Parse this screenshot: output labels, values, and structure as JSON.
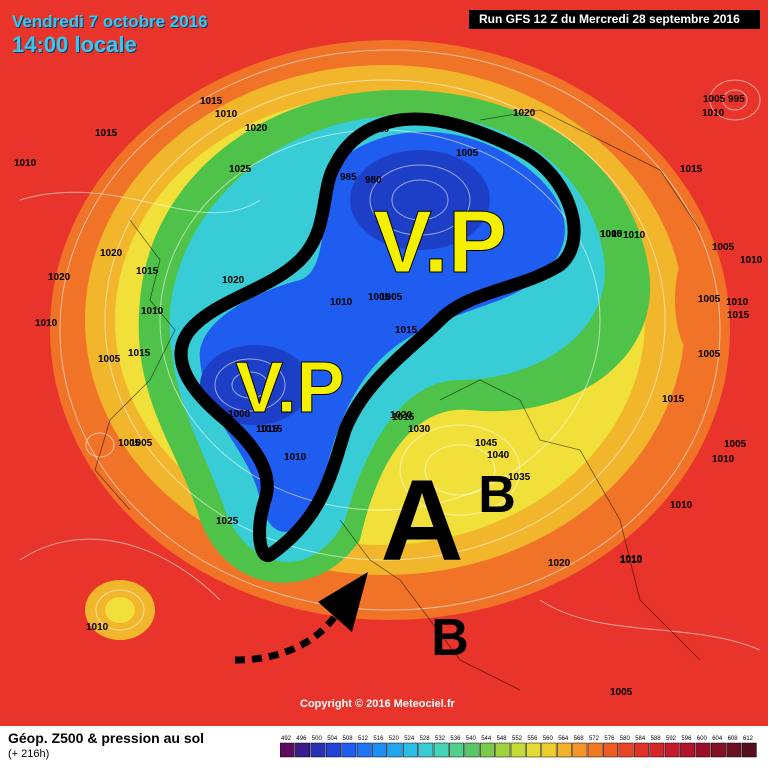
{
  "header": {
    "date": "Vendredi 7 octobre 2016",
    "time": "14:00 locale",
    "run": "Run GFS 12 Z du Mercredi 28 septembre 2016"
  },
  "footer": {
    "copyright": "Copyright © 2016 Meteociel.fr",
    "legend_title": "Géop. Z500 & pression au sol",
    "legend_subtitle": "(+ 216h)"
  },
  "annotations": {
    "vp_large": "V.P",
    "vp_small": "V.P",
    "high": "A",
    "low_east": "B",
    "low_south": "B"
  },
  "isobar_labels": [
    "1015",
    "1010",
    "1015",
    "1020",
    "1025",
    "1010",
    "1020",
    "1015",
    "1010",
    "1020",
    "1005",
    "1010",
    "1020",
    "1015",
    "1005",
    "1015",
    "1010",
    "1000",
    "985",
    "980",
    "1005",
    "1010",
    "1005",
    "1015",
    "1010",
    "1015",
    "1020",
    "1030",
    "1045",
    "1040",
    "1035",
    "1020",
    "1015",
    "1010",
    "1005",
    "1005",
    "1010",
    "1010",
    "1005",
    "1005",
    "1010",
    "1015",
    "1005",
    "1010",
    "1010",
    "1025",
    "1005",
    "995",
    "1010",
    "1005",
    "1015",
    "1010",
    "1020",
    "1005",
    "1015",
    "1010",
    "1010",
    "1005"
  ],
  "colors": {
    "background": "#e8342a",
    "jet_yellow": "#f2e03a",
    "jet_green": "#4fc24a",
    "trough_blue": "#1f4fe0",
    "trough_cyan": "#2fb8e8",
    "annotation_yellow": "#f5f000",
    "annotation_outline": "#000000"
  },
  "scale": {
    "ticks": [
      "492",
      "496",
      "500",
      "504",
      "508",
      "512",
      "516",
      "520",
      "524",
      "528",
      "532",
      "536",
      "540",
      "544",
      "548",
      "552",
      "556",
      "560",
      "564",
      "568",
      "572",
      "576",
      "580",
      "584",
      "588",
      "592",
      "596",
      "600",
      "604",
      "608",
      "612"
    ],
    "colors": [
      "#5b0c5e",
      "#3a1d8a",
      "#2a2fb5",
      "#2244d6",
      "#1f5cf0",
      "#1d75f5",
      "#1e8ff5",
      "#21a7f2",
      "#2abde7",
      "#38cdd6",
      "#45d4b6",
      "#50cf8d",
      "#5ac66a",
      "#7acb4c",
      "#9fd33d",
      "#c5db36",
      "#e2dc33",
      "#f0cd2e",
      "#f4b22a",
      "#f59527",
      "#f37824",
      "#ef5c23",
      "#e94424",
      "#e03227",
      "#d32629",
      "#c41c2a",
      "#b2152a",
      "#9c0f28",
      "#851025",
      "#6e0f21",
      "#560d1c"
    ]
  }
}
